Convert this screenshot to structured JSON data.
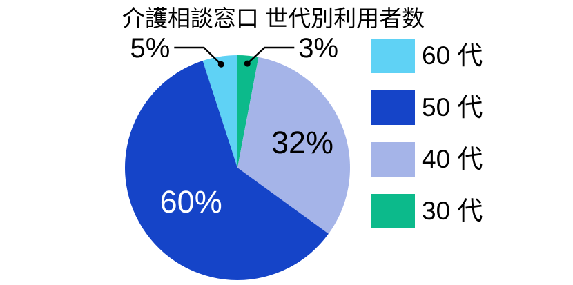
{
  "title": "介護相談窓口 世代別利用者数",
  "chart_data": {
    "type": "pie",
    "title": "介護相談窓口 世代別利用者数",
    "unit": "%",
    "start_angle_deg": 0,
    "direction": "clockwise",
    "slices": [
      {
        "label": "30 代",
        "value": 3,
        "pct_label": "3%",
        "color": "#0CBA8B",
        "label_mode": "callout-right",
        "text_color": "#000000",
        "dot_frac": 0.93
      },
      {
        "label": "40 代",
        "value": 32,
        "pct_label": "32%",
        "color": "#A5B4E8",
        "label_mode": "inside",
        "text_color": "#000000",
        "label_frac": 0.62
      },
      {
        "label": "50 代",
        "value": 60,
        "pct_label": "60%",
        "color": "#1544C8",
        "label_mode": "inside",
        "text_color": "#FFFFFF",
        "label_frac": 0.51
      },
      {
        "label": "60 代",
        "value": 5,
        "pct_label": "5%",
        "color": "#5FD2F5",
        "label_mode": "callout-left",
        "text_color": "#000000",
        "dot_frac": 0.93
      }
    ],
    "legend": {
      "position": "right",
      "items": [
        {
          "label": "60 代",
          "color": "#5FD2F5"
        },
        {
          "label": "50 代",
          "color": "#1544C8"
        },
        {
          "label": "40 代",
          "color": "#A5B4E8"
        },
        {
          "label": "30 代",
          "color": "#0CBA8B"
        }
      ]
    }
  },
  "colors": {
    "background": "#FFFFFF",
    "title_text": "#000000",
    "callout_line": "#000000"
  }
}
